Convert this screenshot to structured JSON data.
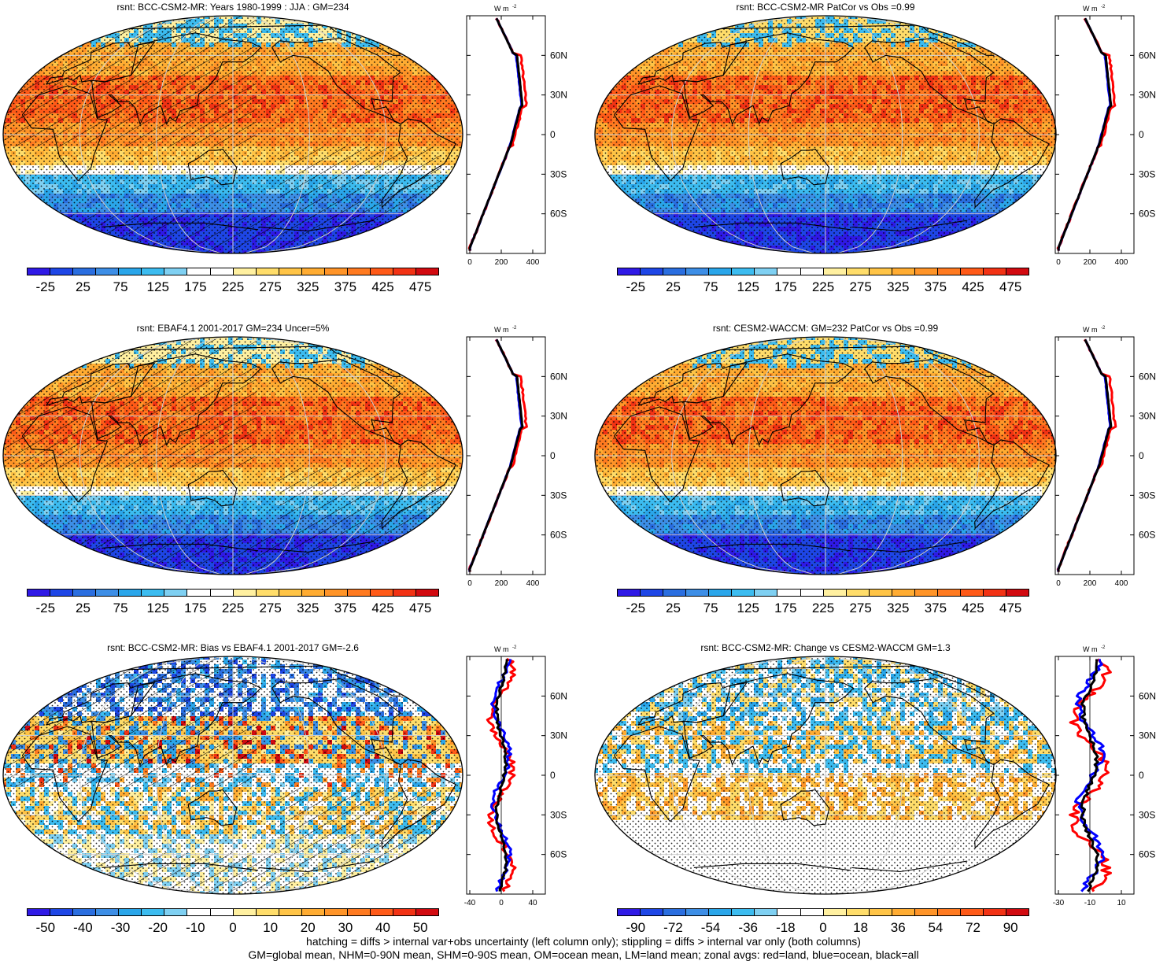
{
  "panels": [
    {
      "title": "rsnt: BCC-CSM2-MR: Years 1980-1999 : JJA : GM=234",
      "kind": "abs",
      "hatch": true,
      "colorbar_labels": [
        "-25",
        "25",
        "75",
        "125",
        "175",
        "225",
        "275",
        "325",
        "375",
        "425",
        "475"
      ],
      "zonal_x_ticks": [
        "0",
        "200",
        "400"
      ],
      "zonal_units": "W m",
      "zonal_units_exp": "-2"
    },
    {
      "title": "rsnt: BCC-CSM2-MR PatCor vs Obs =0.99",
      "kind": "abs",
      "hatch": false,
      "colorbar_labels": [
        "-25",
        "25",
        "75",
        "125",
        "175",
        "225",
        "275",
        "325",
        "375",
        "425",
        "475"
      ],
      "zonal_x_ticks": [
        "0",
        "200",
        "400"
      ],
      "zonal_units": "W m",
      "zonal_units_exp": "-2"
    },
    {
      "title": "rsnt: EBAF4.1 2001-2017 GM=234 Uncer=5%",
      "kind": "abs",
      "hatch": true,
      "colorbar_labels": [
        "-25",
        "25",
        "75",
        "125",
        "175",
        "225",
        "275",
        "325",
        "375",
        "425",
        "475"
      ],
      "zonal_x_ticks": [
        "0",
        "200",
        "400"
      ],
      "zonal_units": "W m",
      "zonal_units_exp": "-2"
    },
    {
      "title": "rsnt: CESM2-WACCM: GM=232 PatCor vs Obs =0.99",
      "kind": "abs",
      "hatch": false,
      "colorbar_labels": [
        "-25",
        "25",
        "75",
        "125",
        "175",
        "225",
        "275",
        "325",
        "375",
        "425",
        "475"
      ],
      "zonal_x_ticks": [
        "0",
        "200",
        "400"
      ],
      "zonal_units": "W m",
      "zonal_units_exp": "-2"
    },
    {
      "title": "rsnt: BCC-CSM2-MR: Bias vs EBAF4.1 2001-2017 GM=-2.6",
      "kind": "diff",
      "hatch": true,
      "colorbar_labels": [
        "-50",
        "-40",
        "-30",
        "-20",
        "-10",
        "0",
        "10",
        "20",
        "30",
        "40",
        "50"
      ],
      "zonal_x_ticks": [
        "-40",
        "0",
        "40"
      ],
      "zonal_units": "W m",
      "zonal_units_exp": "-2"
    },
    {
      "title": "rsnt: BCC-CSM2-MR: Change vs CESM2-WACCM GM=1.3",
      "kind": "diff",
      "hatch": false,
      "colorbar_labels": [
        "-90",
        "-72",
        "-54",
        "-36",
        "-18",
        "0",
        "18",
        "36",
        "54",
        "72",
        "90"
      ],
      "zonal_x_ticks": [
        "-30",
        "-10",
        "10"
      ],
      "zonal_units": "W m",
      "zonal_units_exp": "-2"
    }
  ],
  "lat_labels": [
    "60N",
    "30N",
    "0",
    "30S",
    "60S"
  ],
  "colors": {
    "abs": [
      "#2f19e6",
      "#1e46e6",
      "#2a6ee0",
      "#3d8ee6",
      "#2aa6ea",
      "#3cbcf0",
      "#7fd0f2",
      "#ffffff",
      "#ffffff",
      "#fff0a0",
      "#ffdd6a",
      "#ffc446",
      "#ffac32",
      "#ff9428",
      "#ff7a20",
      "#ff5a18",
      "#f23214",
      "#d20a10"
    ],
    "diff": [
      "#2f19e6",
      "#1e46e6",
      "#2a6ee0",
      "#3d8ee6",
      "#2aa6ea",
      "#3cbcf0",
      "#7fd0f2",
      "#ffffff",
      "#ffffff",
      "#fff0a0",
      "#ffdd6a",
      "#ffc446",
      "#ffac32",
      "#ff9428",
      "#ff7a20",
      "#ff5a18",
      "#f23214",
      "#d20a10"
    ]
  },
  "zonal_colors": {
    "land": "#ff0000",
    "ocean": "#0000ff",
    "all": "#000000"
  },
  "footer": {
    "line1": "hatching = diffs > internal var+obs uncertainty (left column only); stippling = diffs > internal var only (both columns)",
    "line2": "GM=global mean, NHM=0-90N mean, SHM=0-90S mean, OM=ocean mean, LM=land mean; zonal avgs: red=land, blue=ocean, black=all"
  }
}
